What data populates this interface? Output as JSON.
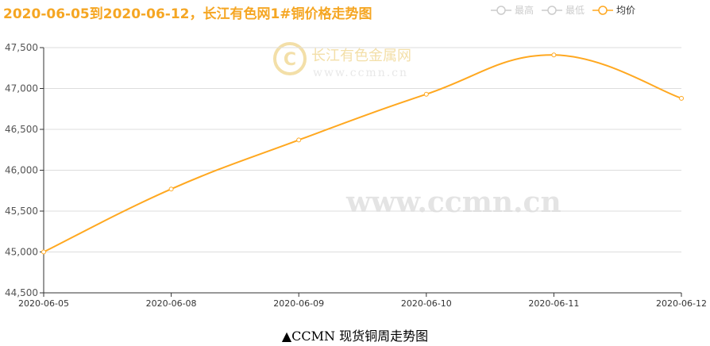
{
  "chart_data": {
    "type": "line",
    "title": "2020-06-05到2020-06-12，长江有色网1#铜价格走势图",
    "categories": [
      "2020-06-05",
      "2020-06-08",
      "2020-06-09",
      "2020-06-10",
      "2020-06-11",
      "2020-06-12"
    ],
    "series": [
      {
        "name": "均价",
        "values": [
          45000,
          45770,
          46370,
          46930,
          47410,
          46880
        ],
        "color": "#ffa820"
      }
    ],
    "legend": [
      {
        "name": "最高",
        "active": false
      },
      {
        "name": "最低",
        "active": false
      },
      {
        "name": "均价",
        "active": true
      }
    ],
    "legend_position": "top-right",
    "ylim": [
      44500,
      47500
    ],
    "yticks": [
      44500,
      45000,
      45500,
      46000,
      46500,
      47000,
      47500
    ],
    "ytick_labels": [
      "44,500",
      "45,000",
      "45,500",
      "46,000",
      "46,500",
      "47,000",
      "47,500"
    ],
    "grid": true
  },
  "watermark": {
    "logo_text": "长江有色金属网",
    "logo_url_text": "www.ccmn.cn",
    "big_text": "www.ccmn.cn"
  },
  "caption": "▲CCMN 现货铜周走势图"
}
